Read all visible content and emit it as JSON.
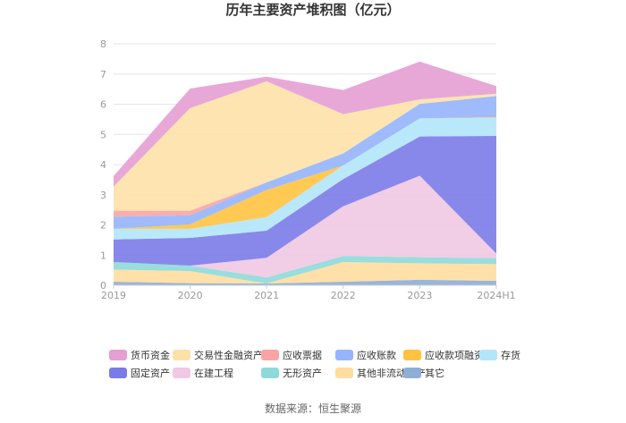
{
  "chart_data": {
    "type": "area",
    "stacked": true,
    "title": "历年主要资产堆积图（亿元）",
    "x": [
      "2019",
      "2020",
      "2021",
      "2022",
      "2023",
      "2024H1"
    ],
    "ylim": [
      0,
      8
    ],
    "yticks": [
      "0",
      "1",
      "2",
      "3",
      "4",
      "5",
      "6",
      "7",
      "8"
    ],
    "grid": true,
    "legend_position": "bottom",
    "series": [
      {
        "name": "其它",
        "color": "#8eaed6",
        "values": [
          0.12,
          0.07,
          0.06,
          0.12,
          0.18,
          0.15
        ]
      },
      {
        "name": "其他非流动资产",
        "color": "#ffdd9e",
        "values": [
          0.4,
          0.4,
          0.0,
          0.65,
          0.55,
          0.55
        ]
      },
      {
        "name": "无形资产",
        "color": "#8ed9d9",
        "values": [
          0.25,
          0.18,
          0.2,
          0.2,
          0.2,
          0.2
        ]
      },
      {
        "name": "在建工程",
        "color": "#f0c8e3",
        "values": [
          0.0,
          0.0,
          0.65,
          1.65,
          2.7,
          0.15
        ]
      },
      {
        "name": "固定资产",
        "color": "#7b7be8",
        "values": [
          0.75,
          0.92,
          0.9,
          0.9,
          1.3,
          3.9
        ]
      },
      {
        "name": "存货",
        "color": "#b3e5fb",
        "values": [
          0.35,
          0.3,
          0.45,
          0.45,
          0.6,
          0.6
        ]
      },
      {
        "name": "应收款项融资",
        "color": "#ffc340",
        "values": [
          0.0,
          0.15,
          0.9,
          0.0,
          0.0,
          0.02
        ]
      },
      {
        "name": "应收账款",
        "color": "#95b4fb",
        "values": [
          0.4,
          0.3,
          0.25,
          0.4,
          0.48,
          0.7
        ]
      },
      {
        "name": "应收票据",
        "color": "#f9a4a4",
        "values": [
          0.2,
          0.15,
          0.0,
          0.0,
          0.0,
          0.0
        ]
      },
      {
        "name": "交易性金融资产",
        "color": "#fde1a8",
        "values": [
          0.8,
          3.4,
          3.35,
          1.3,
          0.15,
          0.08
        ]
      },
      {
        "name": "货币资金",
        "color": "#e49fd3",
        "values": [
          0.35,
          0.65,
          0.15,
          0.8,
          1.25,
          0.25
        ]
      }
    ],
    "legend": [
      {
        "name": "货币资金",
        "color": "#e49fd3"
      },
      {
        "name": "交易性金融资产",
        "color": "#fde1a8"
      },
      {
        "name": "应收票据",
        "color": "#f9a4a4"
      },
      {
        "name": "应收账款",
        "color": "#95b4fb"
      },
      {
        "name": "应收款项融资",
        "color": "#ffc340"
      },
      {
        "name": "存货",
        "color": "#b3e5fb"
      },
      {
        "name": "固定资产",
        "color": "#7b7be8"
      },
      {
        "name": "在建工程",
        "color": "#f0c8e3"
      },
      {
        "name": "无形资产",
        "color": "#8ed9d9"
      },
      {
        "name": "其他非流动资产",
        "color": "#ffdd9e"
      },
      {
        "name": "其它",
        "color": "#8eaed6"
      }
    ],
    "source": "数据来源：恒生聚源"
  }
}
